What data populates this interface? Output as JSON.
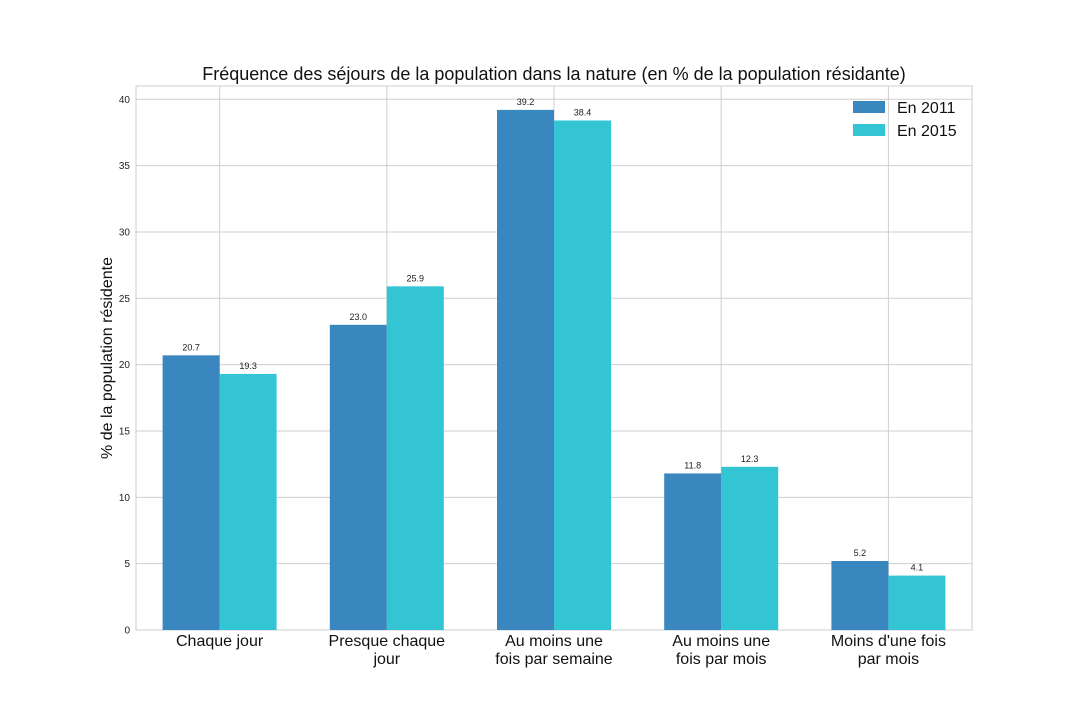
{
  "chart_data": {
    "type": "bar",
    "title": "Fréquence des séjours de la population dans la nature (en % de la population résidante)",
    "xlabel": "",
    "ylabel": "% de la population résidente",
    "ylim": [
      0,
      41
    ],
    "yticks": [
      0,
      5,
      10,
      15,
      20,
      25,
      30,
      35,
      40
    ],
    "grid": true,
    "legend_position": "top-right",
    "categories": [
      [
        "Chaque jour"
      ],
      [
        "Presque chaque",
        "jour"
      ],
      [
        "Au moins une",
        "fois par semaine"
      ],
      [
        "Au moins une",
        "fois par mois"
      ],
      [
        "Moins d'une fois",
        "par mois"
      ]
    ],
    "series": [
      {
        "name": "En 2011",
        "color": "#3a87bf",
        "values": [
          20.7,
          23.0,
          39.2,
          11.8,
          5.2
        ],
        "labels": [
          "20.7",
          "23.0",
          "39.2",
          "11.8",
          "5.2"
        ]
      },
      {
        "name": "En 2015",
        "color": "#33c5d4",
        "values": [
          19.3,
          25.9,
          38.4,
          12.3,
          4.1
        ],
        "labels": [
          "19.3",
          "25.9",
          "38.4",
          "12.3",
          "4.1"
        ]
      }
    ]
  }
}
